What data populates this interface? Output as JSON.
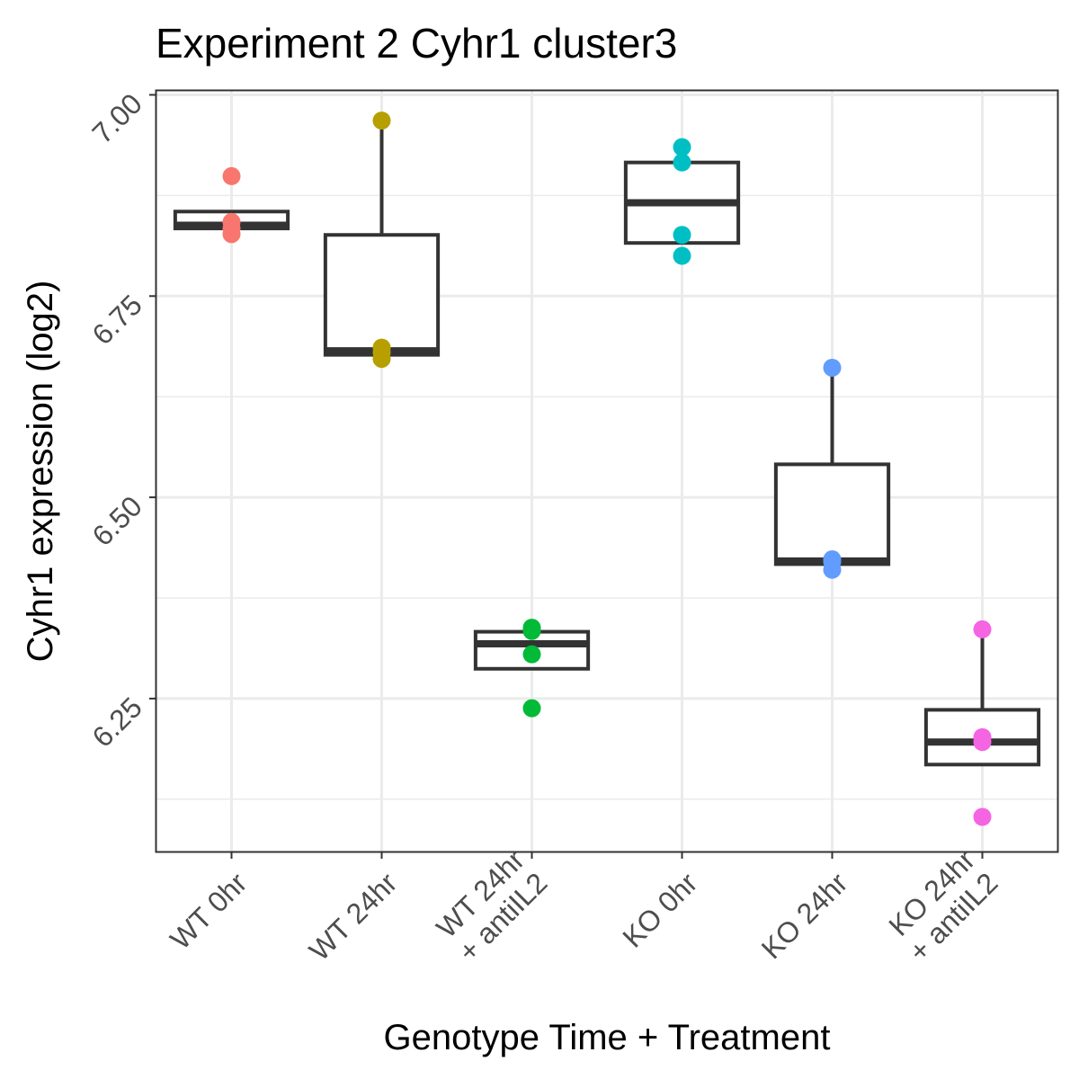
{
  "chart_data": {
    "type": "boxplot",
    "title": "Experiment 2 Cyhr1 cluster3",
    "xlabel": "Genotype Time + Treatment",
    "ylabel": "Cyhr1 expression (log2)",
    "ylim": [
      6.06,
      7.005
    ],
    "y_ticks": [
      6.25,
      6.5,
      6.75,
      7.0
    ],
    "y_tick_labels": [
      "6.25",
      "6.50",
      "6.75",
      "7.00"
    ],
    "grid": true,
    "legend": "none",
    "categories": [
      "WT 0hr",
      "WT 24hr",
      "WT 24hr\n+ antiIL2",
      "KO 0hr",
      "KO 24hr",
      "KO 24hr\n+ antiIL2"
    ],
    "colors": [
      "#F8766D",
      "#B79F00",
      "#00BA38",
      "#00BFC4",
      "#619CFF",
      "#F564E3"
    ],
    "boxes": [
      {
        "q1": 6.834,
        "median": 6.838,
        "q3": 6.855,
        "whisker_low": 6.834,
        "whisker_high": 6.855
      },
      {
        "q1": 6.677,
        "median": 6.682,
        "q3": 6.826,
        "whisker_low": 6.677,
        "whisker_high": 6.968
      },
      {
        "q1": 6.287,
        "median": 6.318,
        "q3": 6.333,
        "whisker_low": 6.287,
        "whisker_high": 6.333
      },
      {
        "q1": 6.816,
        "median": 6.866,
        "q3": 6.916,
        "whisker_low": 6.816,
        "whisker_high": 6.916
      },
      {
        "q1": 6.417,
        "median": 6.421,
        "q3": 6.541,
        "whisker_low": 6.417,
        "whisker_high": 6.661
      },
      {
        "q1": 6.168,
        "median": 6.196,
        "q3": 6.236,
        "whisker_low": 6.168,
        "whisker_high": 6.336
      }
    ],
    "points": [
      [
        6.899,
        6.842,
        6.834,
        6.827
      ],
      [
        6.968,
        6.686,
        6.68,
        6.672
      ],
      [
        6.338,
        6.334,
        6.305,
        6.238
      ],
      [
        6.935,
        6.916,
        6.826,
        6.8
      ],
      [
        6.661,
        6.423,
        6.42,
        6.41
      ],
      [
        6.336,
        6.202,
        6.196,
        6.103
      ]
    ]
  }
}
